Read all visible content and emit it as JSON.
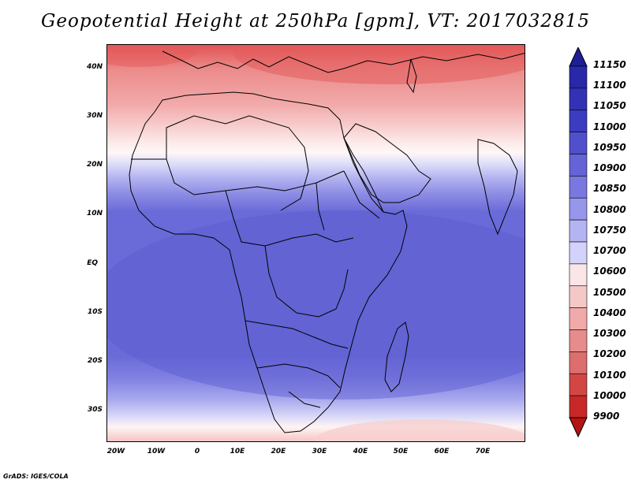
{
  "title": "Geopotential Height at 250hPa [gpm], VT: 2017032815",
  "credit": "GrADS: IGES/COLA",
  "map": {
    "lat_labels": [
      "40N",
      "30N",
      "20N",
      "10N",
      "EQ",
      "10S",
      "20S",
      "30S"
    ],
    "lon_labels": [
      "20W",
      "10W",
      "0",
      "10E",
      "20E",
      "30E",
      "40E",
      "50E",
      "60E",
      "70E"
    ]
  },
  "colorbar": {
    "levels": [
      "11150",
      "11100",
      "11050",
      "11000",
      "10950",
      "10900",
      "10850",
      "10800",
      "10750",
      "10700",
      "10600",
      "10500",
      "10400",
      "10300",
      "10200",
      "10100",
      "10000",
      "9900"
    ],
    "colors": [
      "#1e1e96",
      "#2828a8",
      "#3232b4",
      "#3c3cc0",
      "#5050cc",
      "#6464d6",
      "#7878e0",
      "#9696ea",
      "#b4b4f2",
      "#d2d2fa",
      "#fae6e6",
      "#f5c8c8",
      "#f0aaaa",
      "#e68c8c",
      "#dc6e6e",
      "#d24646",
      "#c82828",
      "#b41414"
    ]
  },
  "field": {
    "colors": {
      "bright_red": "#e45c5c",
      "red": "#ef9a9a",
      "pink": "#f5bebe",
      "light_pink": "#fadcdc",
      "white": "#fff7f7",
      "pale_blue": "#dcdcf8",
      "light_blue": "#b8b8f2",
      "mid_blue": "#9090e6",
      "blue": "#6a6ad8",
      "deep_blue": "#5c5cd0"
    }
  }
}
